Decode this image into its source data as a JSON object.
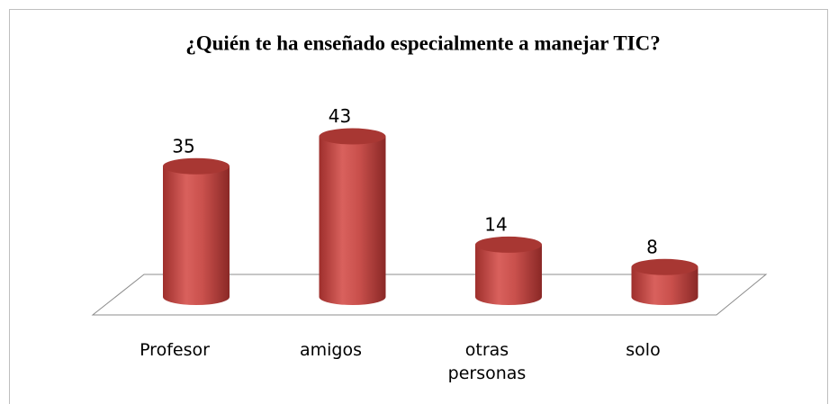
{
  "chart_data": {
    "type": "bar",
    "title": "¿Quién te ha enseñado especialmente a manejar TIC?",
    "categories": [
      "Profesor",
      "amigos",
      "otras personas",
      "solo"
    ],
    "values": [
      35,
      43,
      14,
      8
    ],
    "color": "#c0504d"
  }
}
